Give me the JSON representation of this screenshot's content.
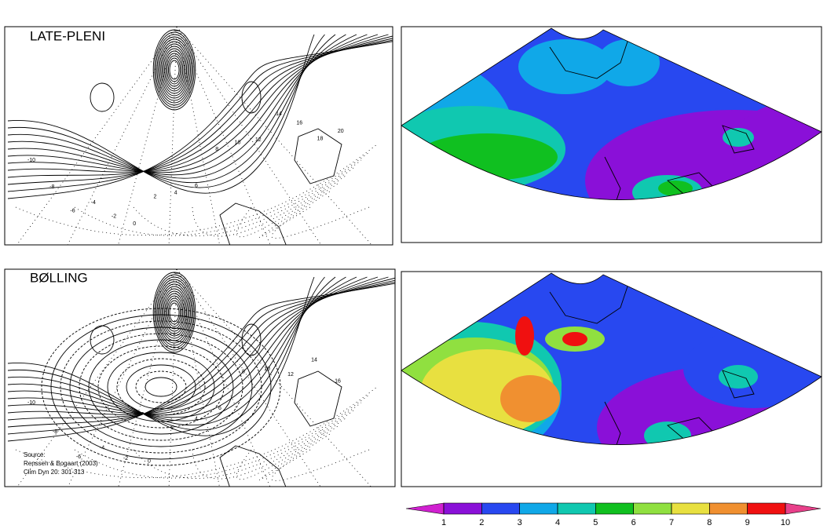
{
  "panels": [
    {
      "title": "LATE-PLENI",
      "contour_labels": [
        "-10",
        "-8",
        "-6",
        "-4",
        "-2",
        "0",
        "2",
        "4",
        "6",
        "8",
        "10",
        "12",
        "14",
        "16",
        "18",
        "20"
      ]
    },
    {
      "title": "BØLLING",
      "contour_labels": [
        "-10",
        "-8",
        "-6",
        "-4",
        "-2",
        "0",
        "2",
        "4",
        "6",
        "8",
        "10",
        "12",
        "14",
        "16"
      ]
    }
  ],
  "source": [
    "Source:",
    "Renssen & Bogaart (2003)",
    "Clim Dyn 20: 301-313"
  ],
  "colorbar": {
    "ticks": [
      1,
      2,
      3,
      4,
      5,
      6,
      7,
      8,
      9,
      10
    ],
    "colors": [
      "#d020d0",
      "#8a10d8",
      "#2848f0",
      "#10a8e8",
      "#10c8b0",
      "#10c020",
      "#90e040",
      "#e8e040",
      "#f09030",
      "#f01010",
      "#e8408a"
    ]
  }
}
